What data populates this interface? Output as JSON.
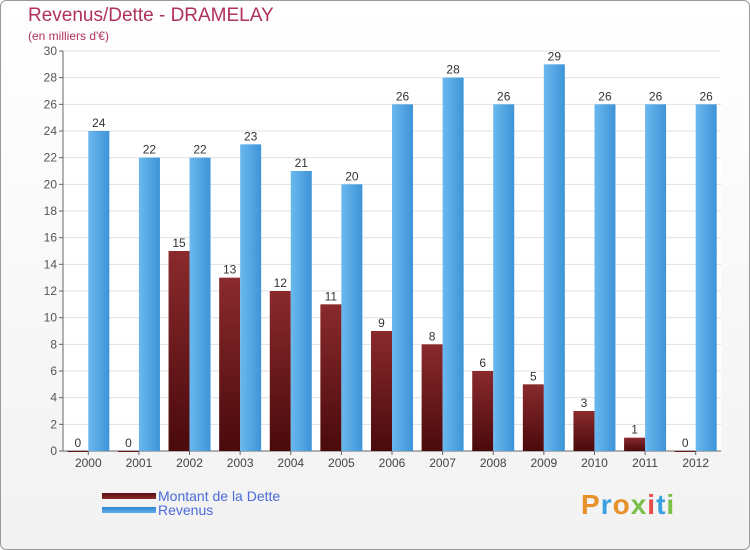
{
  "header": {
    "title": "Revenus/Dette - DRAMELAY",
    "subtitle": "(en milliers d'€)"
  },
  "legend": {
    "debt_label": "Montant de la Dette",
    "revenue_label": "Revenus"
  },
  "logo": {
    "text": "Proxiti"
  },
  "colors": {
    "debt": "#7a1f22",
    "revenue": "#4da0e0",
    "title": "#b03060",
    "legend_text": "#4a6ad8"
  },
  "chart_data": {
    "type": "bar",
    "title": "Revenus/Dette - DRAMELAY",
    "subtitle": "(en milliers d'€)",
    "categories": [
      "2000",
      "2001",
      "2002",
      "2003",
      "2004",
      "2005",
      "2006",
      "2007",
      "2008",
      "2009",
      "2010",
      "2011",
      "2012"
    ],
    "series": [
      {
        "name": "Montant de la Dette",
        "values": [
          0,
          0,
          15,
          13,
          12,
          11,
          9,
          8,
          6,
          5,
          3,
          1,
          0
        ]
      },
      {
        "name": "Revenus",
        "values": [
          24,
          22,
          22,
          23,
          21,
          20,
          26,
          28,
          26,
          29,
          26,
          26,
          26
        ]
      }
    ],
    "ylim": [
      0,
      30
    ],
    "yticks": [
      0,
      2,
      4,
      6,
      8,
      10,
      12,
      14,
      16,
      18,
      20,
      22,
      24,
      26,
      28,
      30
    ],
    "grid": true,
    "legend_position": "bottom-left"
  }
}
